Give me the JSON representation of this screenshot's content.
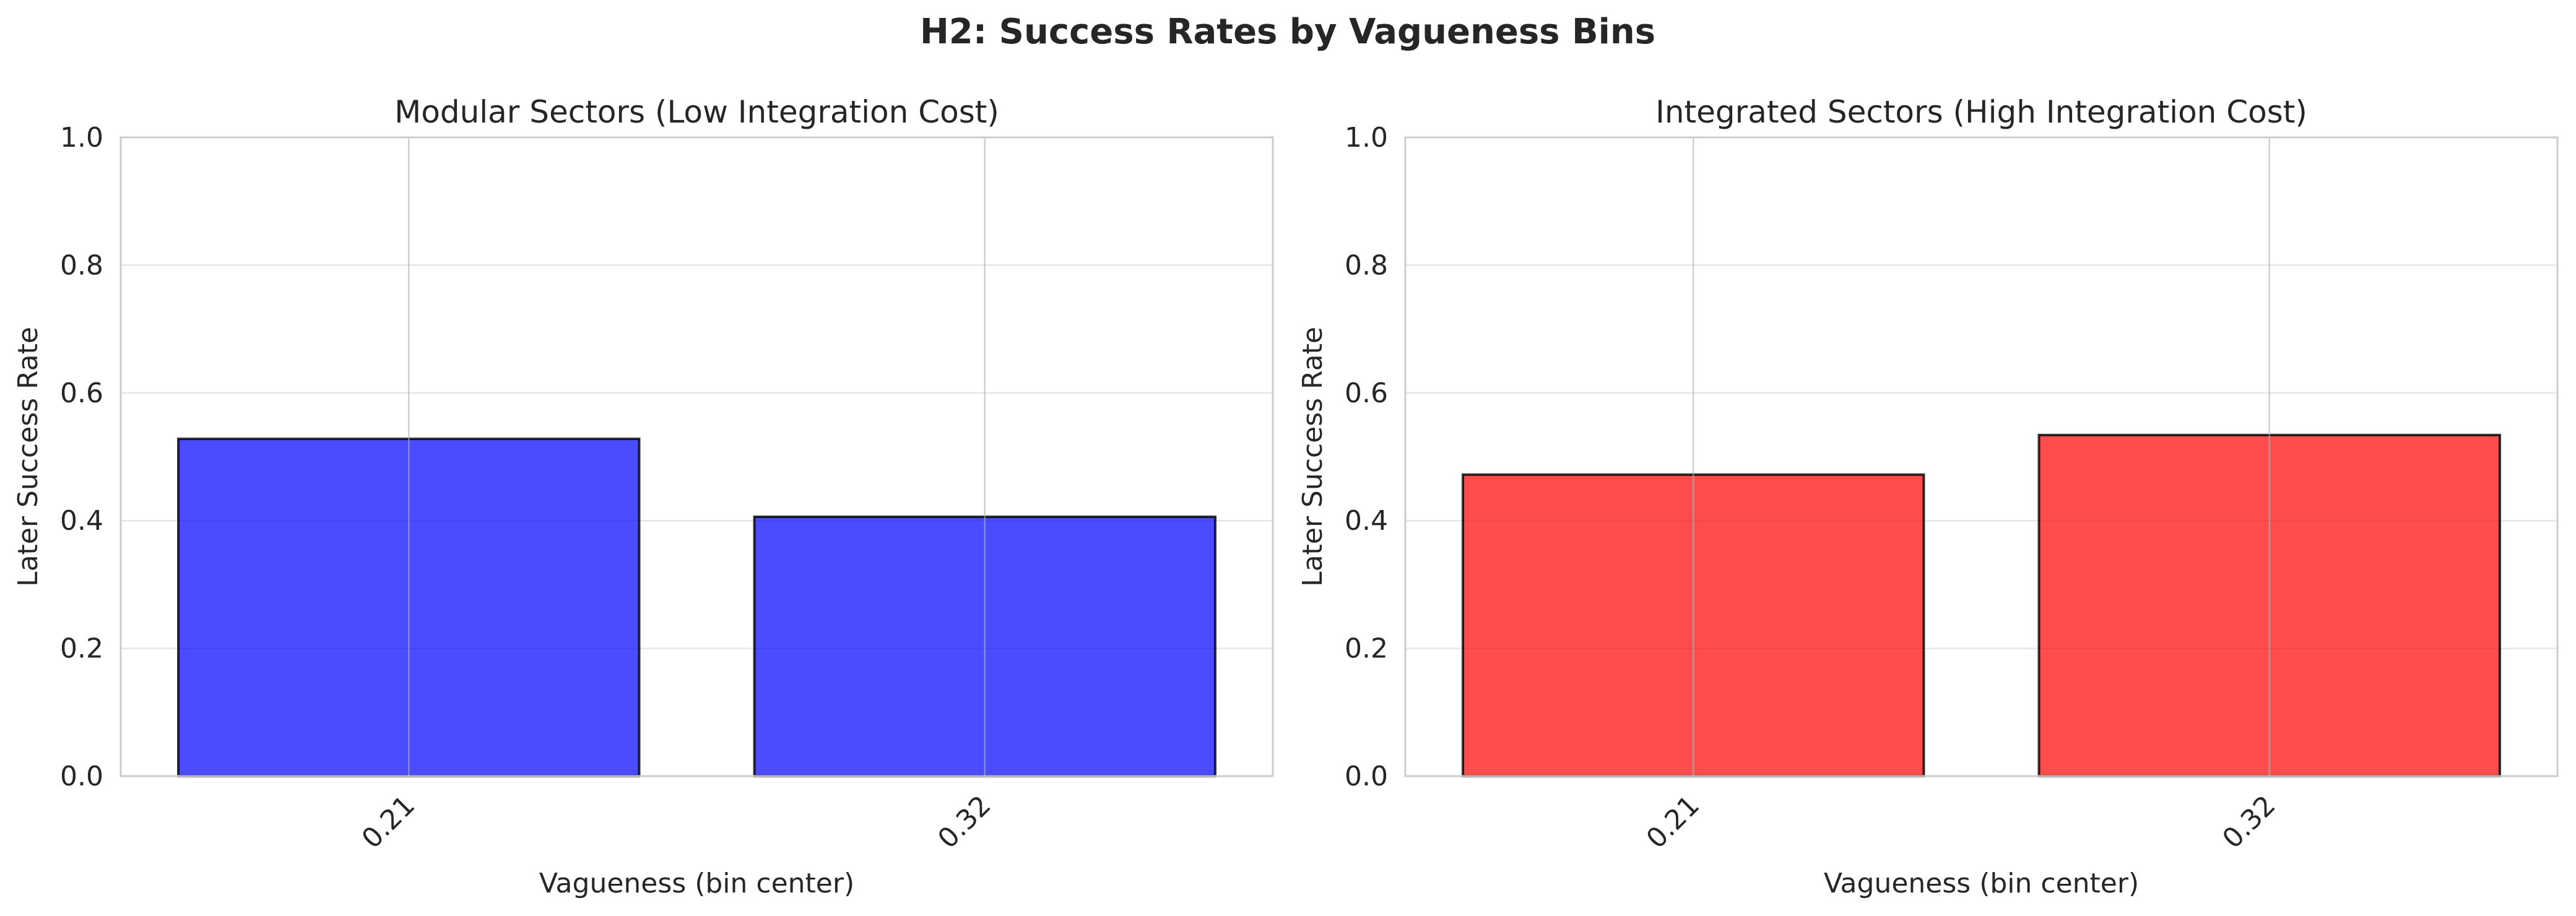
{
  "figure": {
    "suptitle": "H2: Success Rates by Vagueness Bins"
  },
  "colors": {
    "modular_bar": "#0000ff",
    "integrated_bar": "#ff0000",
    "bar_edge": "#000000",
    "bar_alpha": 0.7,
    "grid": "#e6e6e6",
    "frame": "#cccccc",
    "text": "#262626"
  },
  "chart_data": [
    {
      "type": "bar",
      "title": "Modular Sectors (Low Integration Cost)",
      "xlabel": "Vagueness (bin center)",
      "ylabel": "Later Success Rate",
      "categories": [
        "0.21",
        "0.32"
      ],
      "values": [
        0.528,
        0.406
      ],
      "ylim": [
        0,
        1.0
      ],
      "yticks": [
        "0.0",
        "0.2",
        "0.4",
        "0.6",
        "0.8",
        "1.0"
      ],
      "grid": true,
      "color_key": "modular_bar"
    },
    {
      "type": "bar",
      "title": "Integrated Sectors (High Integration Cost)",
      "xlabel": "Vagueness (bin center)",
      "ylabel": "Later Success Rate",
      "categories": [
        "0.21",
        "0.32"
      ],
      "values": [
        0.472,
        0.534
      ],
      "ylim": [
        0,
        1.0
      ],
      "yticks": [
        "0.0",
        "0.2",
        "0.4",
        "0.6",
        "0.8",
        "1.0"
      ],
      "grid": true,
      "color_key": "integrated_bar"
    }
  ]
}
